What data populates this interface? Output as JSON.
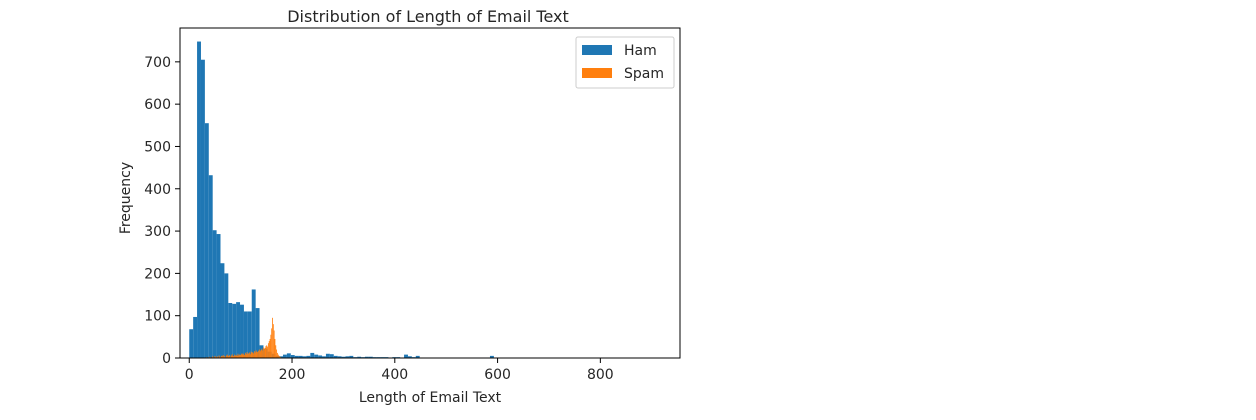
{
  "chart_data": {
    "type": "bar",
    "title": "Distribution of Length of Email Text",
    "xlabel": "Length of Email Text",
    "ylabel": "Frequency",
    "xlim": [
      -18,
      955
    ],
    "ylim": [
      0,
      780
    ],
    "xticks": [
      0,
      200,
      400,
      600,
      800
    ],
    "yticks": [
      0,
      100,
      200,
      300,
      400,
      500,
      600,
      700
    ],
    "grid": false,
    "legend": "top-right",
    "series": [
      {
        "name": "Ham",
        "color": "#1f77b4",
        "bin_width": 7.6,
        "bin_start": 0,
        "values": [
          68,
          97,
          748,
          705,
          555,
          432,
          302,
          293,
          224,
          200,
          130,
          128,
          132,
          126,
          110,
          110,
          162,
          118,
          30,
          22,
          15,
          10,
          5,
          4,
          8,
          11,
          7,
          5,
          5,
          4,
          5,
          12,
          8,
          6,
          4,
          10,
          9,
          5,
          4,
          3,
          4,
          5,
          2,
          3,
          2,
          3,
          3,
          2,
          2,
          2,
          2,
          1,
          2,
          2,
          1,
          8,
          4,
          2,
          5,
          1,
          1,
          1,
          1,
          1,
          1,
          1,
          1,
          1,
          1,
          1,
          1,
          1,
          1,
          1,
          1,
          1,
          1,
          5,
          1,
          1,
          1,
          1,
          1,
          1,
          1,
          1,
          1,
          1,
          1,
          1,
          1,
          1,
          1,
          1,
          1,
          1,
          1,
          1,
          1,
          1,
          1,
          1,
          1,
          1,
          1,
          1,
          1,
          1,
          1,
          1,
          1,
          1,
          1,
          1,
          1,
          1,
          1,
          1,
          1,
          1
        ]
      },
      {
        "name": "Spam",
        "color": "#ff7f0e",
        "bin_width": 1.6,
        "bin_start": 30,
        "values": [
          1,
          0,
          2,
          1,
          0,
          3,
          1,
          2,
          0,
          4,
          2,
          1,
          5,
          3,
          2,
          4,
          1,
          6,
          3,
          2,
          5,
          4,
          7,
          3,
          5,
          2,
          6,
          8,
          4,
          5,
          7,
          3,
          6,
          9,
          5,
          4,
          8,
          6,
          7,
          5,
          10,
          6,
          8,
          7,
          9,
          11,
          8,
          10,
          7,
          12,
          9,
          14,
          10,
          11,
          13,
          9,
          15,
          12,
          14,
          11,
          16,
          13,
          18,
          15,
          14,
          17,
          20,
          16,
          19,
          22,
          18,
          25,
          21,
          24,
          28,
          30,
          27,
          35,
          40,
          45,
          55,
          70,
          95,
          80,
          65,
          45,
          30,
          20,
          12,
          8,
          5,
          3,
          2,
          1,
          1
        ]
      }
    ]
  }
}
